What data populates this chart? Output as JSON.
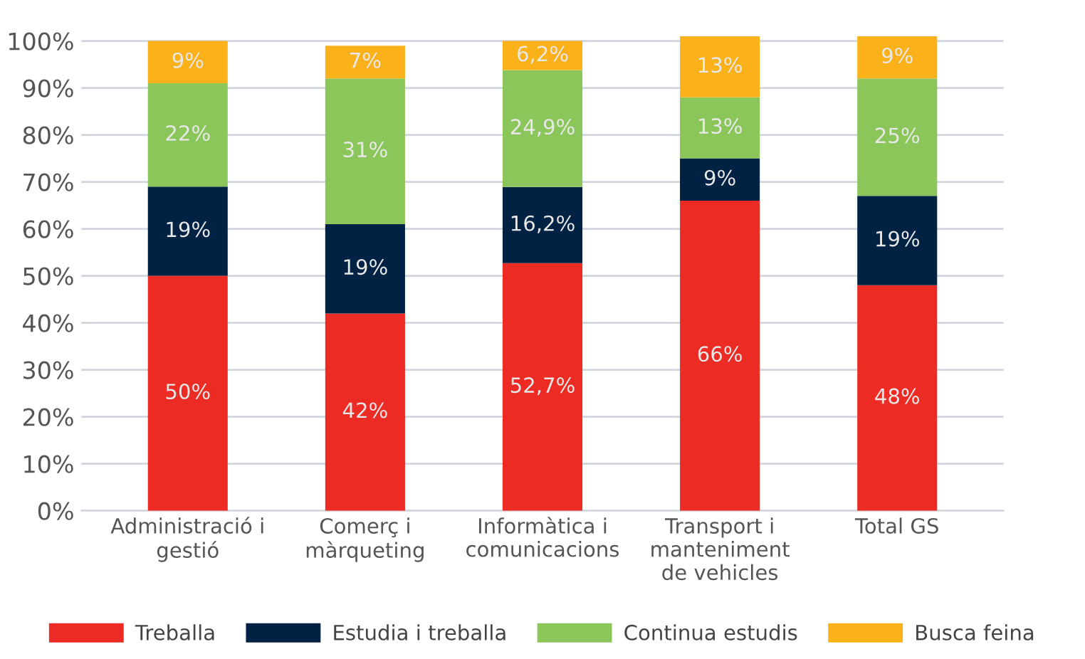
{
  "chart_data": {
    "type": "bar",
    "stacked": true,
    "categories": [
      "Administració i\ngestió",
      "Comerç i\nmàrqueting",
      "Informàtica i\ncomunicacions",
      "Transport i\nmanteniment\nde vehicles",
      "Total GS"
    ],
    "series": [
      {
        "name": "Treballa",
        "color": "#ec2b24",
        "values": [
          50,
          42,
          52.7,
          66,
          48
        ],
        "value_labels": [
          "50%",
          "42%",
          "52,7%",
          "66%",
          "48%"
        ]
      },
      {
        "name": "Estudia i treballa",
        "color": "#022244",
        "values": [
          19,
          19,
          16.2,
          9,
          19
        ],
        "value_labels": [
          "19%",
          "19%",
          "16,2%",
          "9%",
          "19%"
        ]
      },
      {
        "name": "Continua estudis",
        "color": "#8bc65a",
        "values": [
          22,
          31,
          24.9,
          13,
          25
        ],
        "value_labels": [
          "22%",
          "31%",
          "24,9%",
          "13%",
          "25%"
        ]
      },
      {
        "name": "Busca feina",
        "color": "#fbb11a",
        "values": [
          9,
          7,
          6.2,
          13,
          9
        ],
        "value_labels": [
          "9%",
          "7%",
          "6,2%",
          "13%",
          "9%"
        ]
      }
    ],
    "ylim": [
      0,
      101
    ],
    "yticks": [
      {
        "value": 0,
        "label": "0%"
      },
      {
        "value": 10,
        "label": "10%"
      },
      {
        "value": 20,
        "label": "20%"
      },
      {
        "value": 30,
        "label": "30%"
      },
      {
        "value": 40,
        "label": "40%"
      },
      {
        "value": 50,
        "label": "50%"
      },
      {
        "value": 60,
        "label": "60%"
      },
      {
        "value": 70,
        "label": "70%"
      },
      {
        "value": 80,
        "label": "80%"
      },
      {
        "value": 90,
        "label": "90%"
      },
      {
        "value": 100,
        "label": "100%"
      }
    ],
    "grid": "y",
    "legend": "bottom"
  }
}
